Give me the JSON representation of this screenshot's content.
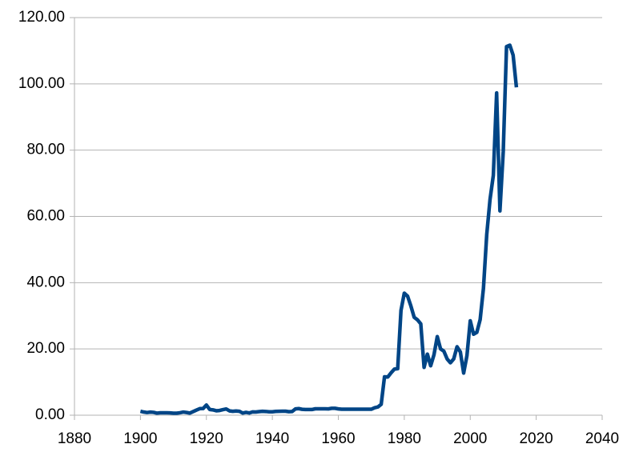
{
  "chart_data": {
    "type": "line",
    "x": [
      1900,
      1901,
      1902,
      1903,
      1904,
      1905,
      1906,
      1907,
      1908,
      1909,
      1910,
      1911,
      1912,
      1913,
      1914,
      1915,
      1916,
      1917,
      1918,
      1919,
      1920,
      1921,
      1922,
      1923,
      1924,
      1925,
      1926,
      1927,
      1928,
      1929,
      1930,
      1931,
      1932,
      1933,
      1934,
      1935,
      1936,
      1937,
      1938,
      1939,
      1940,
      1941,
      1942,
      1943,
      1944,
      1945,
      1946,
      1947,
      1948,
      1949,
      1950,
      1951,
      1952,
      1953,
      1954,
      1955,
      1956,
      1957,
      1958,
      1959,
      1960,
      1961,
      1962,
      1963,
      1964,
      1965,
      1966,
      1967,
      1968,
      1969,
      1970,
      1971,
      1972,
      1973,
      1974,
      1975,
      1976,
      1977,
      1978,
      1979,
      1980,
      1981,
      1982,
      1983,
      1984,
      1985,
      1986,
      1987,
      1988,
      1989,
      1990,
      1991,
      1992,
      1993,
      1994,
      1995,
      1996,
      1997,
      1998,
      1999,
      2000,
      2001,
      2002,
      2003,
      2004,
      2005,
      2006,
      2007,
      2008,
      2009,
      2010,
      2011,
      2012,
      2013,
      2014
    ],
    "series": [
      {
        "color": "#004586",
        "values": [
          1.19,
          0.96,
          0.8,
          0.94,
          0.86,
          0.62,
          0.73,
          0.72,
          0.72,
          0.7,
          0.61,
          0.61,
          0.74,
          0.95,
          0.81,
          0.64,
          1.1,
          1.56,
          1.98,
          2.01,
          3.07,
          1.73,
          1.61,
          1.34,
          1.43,
          1.68,
          1.88,
          1.3,
          1.17,
          1.27,
          1.19,
          0.65,
          0.87,
          0.67,
          1.0,
          0.97,
          1.09,
          1.18,
          1.13,
          1.02,
          1.02,
          1.14,
          1.19,
          1.2,
          1.21,
          1.05,
          1.12,
          1.9,
          1.99,
          1.78,
          1.71,
          1.71,
          1.71,
          1.93,
          1.93,
          1.93,
          1.93,
          1.9,
          2.08,
          2.08,
          1.9,
          1.8,
          1.8,
          1.8,
          1.8,
          1.8,
          1.8,
          1.8,
          1.8,
          1.8,
          1.8,
          2.24,
          2.48,
          3.29,
          11.58,
          11.53,
          12.8,
          13.92,
          14.02,
          31.61,
          36.83,
          35.93,
          32.97,
          29.55,
          28.78,
          27.56,
          14.43,
          18.44,
          14.92,
          18.23,
          23.73,
          20.0,
          19.32,
          16.97,
          15.82,
          17.02,
          20.67,
          19.09,
          12.72,
          17.97,
          28.5,
          24.44,
          25.02,
          28.83,
          38.27,
          54.52,
          65.14,
          72.39,
          97.26,
          61.67,
          79.5,
          111.26,
          111.67,
          108.66,
          98.95
        ]
      }
    ],
    "xlim": [
      1880,
      2040
    ],
    "xticks": [
      1880,
      1900,
      1920,
      1940,
      1960,
      1980,
      2000,
      2020,
      2040
    ],
    "ylim": [
      0,
      120
    ],
    "yticks": [
      {
        "value": 0,
        "label": "0.00"
      },
      {
        "value": 20,
        "label": "20.00"
      },
      {
        "value": 40,
        "label": "40.00"
      },
      {
        "value": 60,
        "label": "60.00"
      },
      {
        "value": 80,
        "label": "80.00"
      },
      {
        "value": 100,
        "label": "100.00"
      },
      {
        "value": 120,
        "label": "120.00"
      }
    ],
    "grid": true
  }
}
